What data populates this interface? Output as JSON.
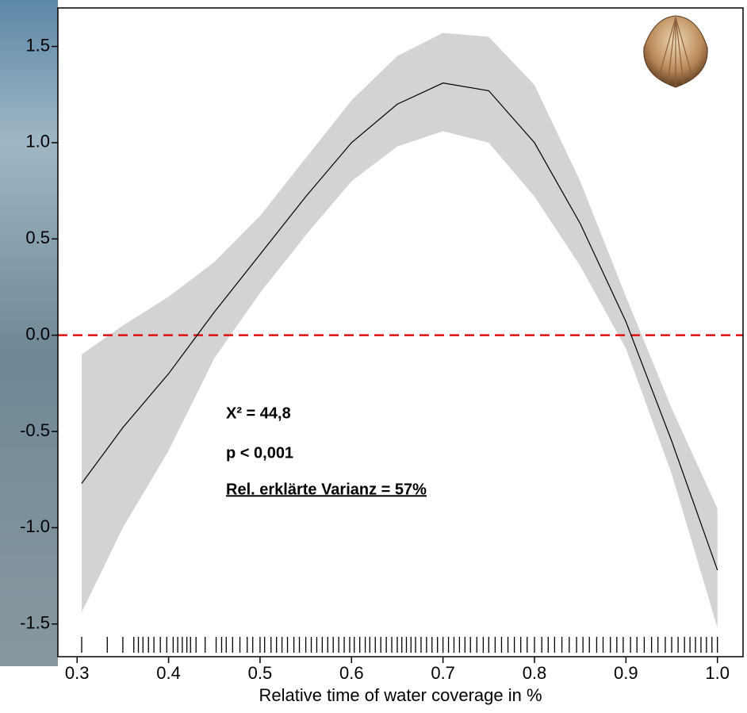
{
  "chart_data": {
    "type": "smooth",
    "xlabel": "Relative time of water coverage in %",
    "xlim": [
      0.279,
      1.028
    ],
    "ylim": [
      -1.67,
      1.7
    ],
    "xticks": [
      0.3,
      0.4,
      0.5,
      0.6,
      0.7,
      0.8,
      0.9,
      {
        "value": 1,
        "label": "1.0"
      }
    ],
    "yticks": [
      1.5,
      {
        "value": 1,
        "label": "1.0"
      },
      0.5,
      {
        "value": 0,
        "label": "0.0"
      },
      -0.5,
      {
        "value": -1,
        "label": "-1.0"
      },
      -1.5
    ],
    "x": [
      0.305,
      0.35,
      0.4,
      0.45,
      0.5,
      0.55,
      0.6,
      0.65,
      0.7,
      0.75,
      0.8,
      0.85,
      0.9,
      0.95,
      1.0
    ],
    "fit": [
      -0.77,
      -0.48,
      -0.2,
      0.12,
      0.42,
      0.72,
      1.0,
      1.2,
      1.31,
      1.27,
      1.0,
      0.58,
      0.07,
      -0.55,
      -1.22
    ],
    "band_upper": [
      -0.1,
      0.05,
      0.2,
      0.38,
      0.62,
      0.92,
      1.22,
      1.45,
      1.57,
      1.55,
      1.3,
      0.8,
      0.2,
      -0.38,
      -0.9
    ],
    "band_lower": [
      -1.44,
      -1.0,
      -0.6,
      -0.12,
      0.22,
      0.52,
      0.8,
      0.98,
      1.06,
      1.0,
      0.72,
      0.36,
      -0.07,
      -0.72,
      -1.52
    ],
    "line_color": "#000000",
    "band_color": "#d3d3d3",
    "hline": 0,
    "hline_color": "#dd1111",
    "rug": [
      0.305,
      0.333,
      0.35,
      0.362,
      0.367,
      0.372,
      0.378,
      0.384,
      0.391,
      0.398,
      0.405,
      0.41,
      0.415,
      0.42,
      0.424,
      0.43,
      0.44,
      0.452,
      0.458,
      0.463,
      0.47,
      0.478,
      0.486,
      0.492,
      0.5,
      0.505,
      0.512,
      0.518,
      0.524,
      0.53,
      0.537,
      0.543,
      0.55,
      0.556,
      0.562,
      0.568,
      0.574,
      0.58,
      0.586,
      0.592,
      0.598,
      0.603,
      0.609,
      0.615,
      0.62,
      0.626,
      0.632,
      0.638,
      0.644,
      0.65,
      0.655,
      0.66,
      0.665,
      0.67,
      0.676,
      0.682,
      0.688,
      0.694,
      0.7,
      0.706,
      0.712,
      0.718,
      0.724,
      0.73,
      0.737,
      0.744,
      0.75,
      0.757,
      0.764,
      0.771,
      0.778,
      0.785,
      0.792,
      0.8,
      0.808,
      0.815,
      0.822,
      0.83,
      0.838,
      0.846,
      0.853,
      0.86,
      0.868,
      0.875,
      0.883,
      0.89,
      0.897,
      0.905,
      0.912,
      0.92,
      0.928,
      0.935,
      0.943,
      0.95,
      0.957,
      0.964,
      0.97,
      0.976,
      0.982,
      0.988,
      0.994,
      1.0
    ],
    "annotations": [
      "X² = 44,8",
      "p < 0,001",
      "Rel. erklärte Varianz = 57%"
    ]
  }
}
